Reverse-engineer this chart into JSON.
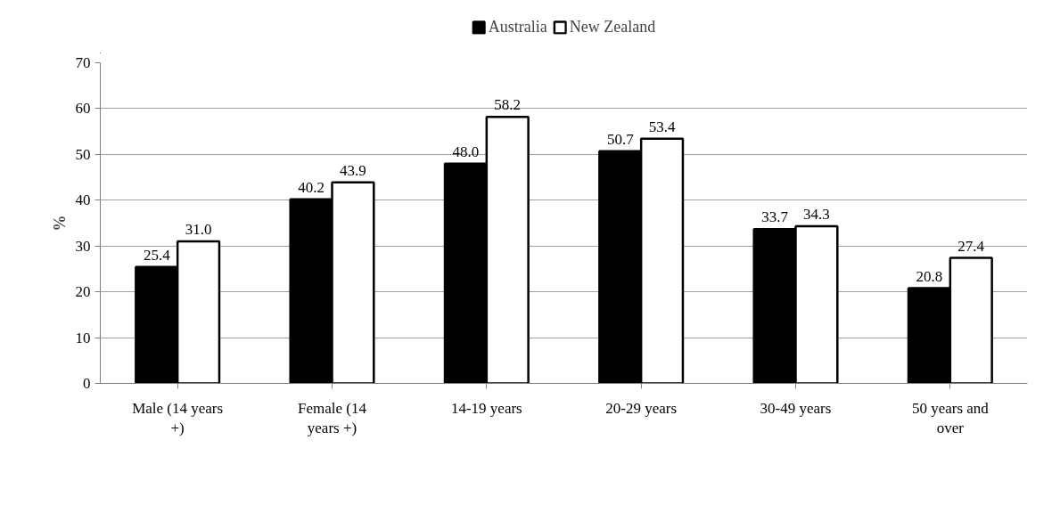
{
  "chart_data": {
    "type": "bar",
    "ylabel": "%",
    "categories": [
      "Male (14 years +)",
      "Female (14 years +)",
      "14-19 years",
      "20-29 years",
      "30-49 years",
      "50 years and over"
    ],
    "series": [
      {
        "name": "Australia",
        "color": "#000000",
        "values": [
          25.4,
          40.2,
          48.0,
          50.7,
          33.7,
          20.8
        ],
        "value_labels": [
          "25.4",
          "40.2",
          "48.0",
          "50.7",
          "33.7",
          "20.8"
        ]
      },
      {
        "name": "New Zealand",
        "color": "#ffffff",
        "values": [
          31.0,
          43.9,
          58.2,
          53.4,
          34.3,
          27.4
        ],
        "value_labels": [
          "31.0",
          "43.9",
          "58.2",
          "53.4",
          "34.3",
          "27.4"
        ]
      }
    ],
    "ylim": [
      0,
      70
    ],
    "yticks": [
      0,
      10,
      20,
      30,
      40,
      50,
      60,
      70
    ],
    "grid": "y",
    "legend": "top"
  }
}
